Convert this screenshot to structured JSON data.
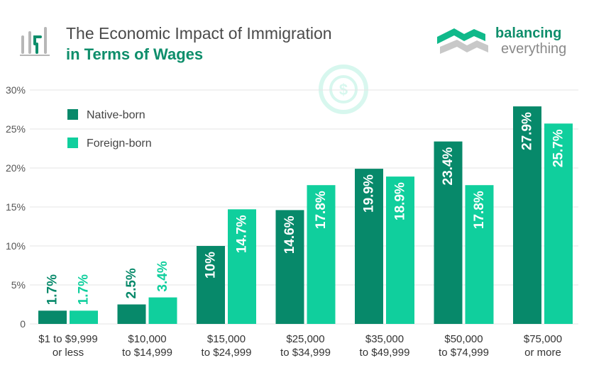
{
  "header": {
    "title_line1": "The Economic Impact of Immigration",
    "title_line2": "in Terms of Wages"
  },
  "brand": {
    "name_line1": "balancing",
    "name_line2": "everything"
  },
  "colors": {
    "native": "#07896a",
    "foreign": "#10cf9d",
    "title_accent": "#0e8e6b",
    "grid": "#e6e6e6",
    "axis_text": "#555555",
    "icon_gray": "#b7b7b7"
  },
  "icons": [
    "bar-chart-icon",
    "brand-logo-icon",
    "dollar-coin-icon"
  ],
  "chart_data": {
    "type": "bar",
    "title": "The Economic Impact of Immigration in Terms of Wages",
    "categories": [
      [
        "$1 to $9,999",
        "or less"
      ],
      [
        "$10,000",
        "to $14,999"
      ],
      [
        "$15,000",
        "to $24,999"
      ],
      [
        "$25,000",
        "to $34,999"
      ],
      [
        "$35,000",
        "to $49,999"
      ],
      [
        "$50,000",
        "to $74,999"
      ],
      [
        "$75,000",
        "or more"
      ]
    ],
    "series": [
      {
        "name": "Native-born",
        "values": [
          1.7,
          2.5,
          10,
          14.6,
          19.9,
          23.4,
          27.9
        ],
        "labels": [
          "1.7%",
          "2.5%",
          "10%",
          "14.6%",
          "19.9%",
          "23.4%",
          "27.9%"
        ]
      },
      {
        "name": "Foreign-born",
        "values": [
          1.7,
          3.4,
          14.7,
          17.8,
          18.9,
          17.8,
          25.7
        ],
        "labels": [
          "1.7%",
          "3.4%",
          "14.7%",
          "17.8%",
          "18.9%",
          "17.8%",
          "25.7%"
        ]
      }
    ],
    "yticks": [
      "0",
      "5%",
      "10%",
      "15%",
      "20%",
      "25%",
      "30%"
    ],
    "ylim": [
      0,
      30
    ],
    "grid": true,
    "legend_position": "top-left"
  }
}
